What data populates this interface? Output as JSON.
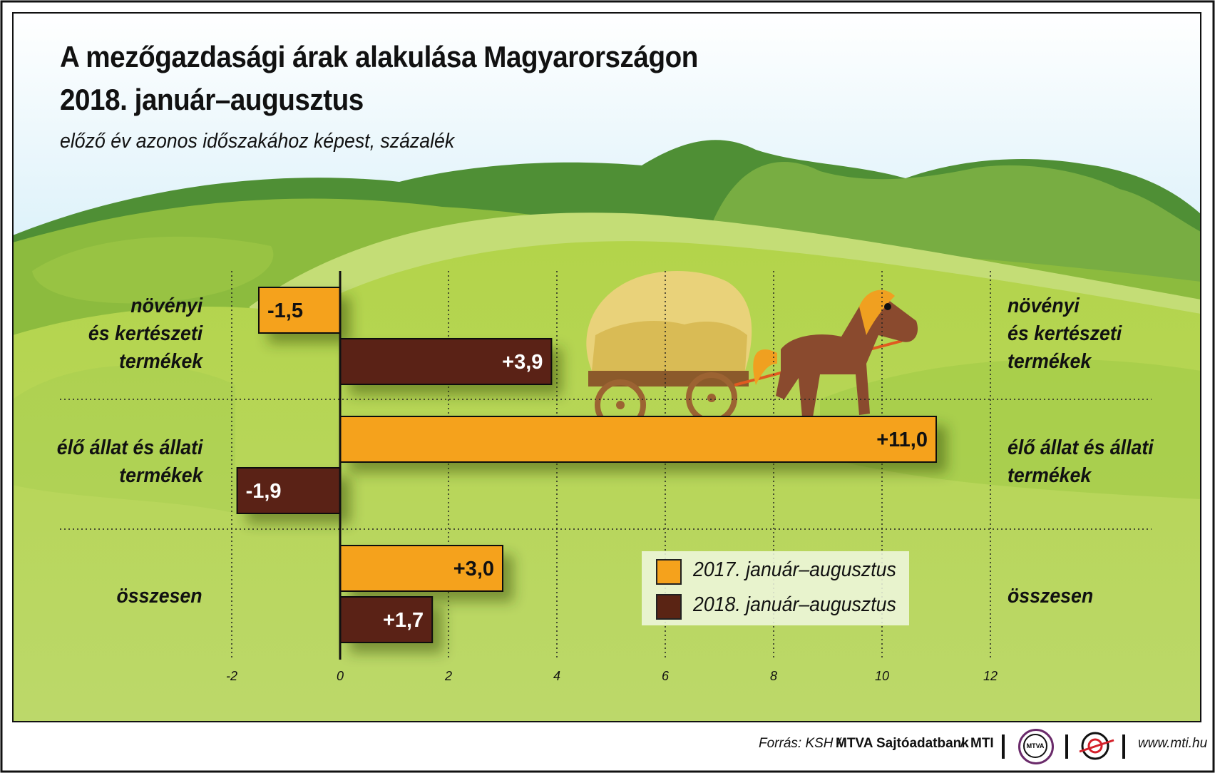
{
  "header": {
    "title_line1": "A mezőgazdasági árak alakulása Magyarországon",
    "title_line2": "2018. január–augusztus",
    "subtitle": "előző év azonos időszakához képest, százalék"
  },
  "chart_data": {
    "type": "bar",
    "orientation": "horizontal",
    "categories": [
      [
        "növényi",
        "és kertészeti",
        "termékek"
      ],
      [
        "élő állat és állati",
        "termékek"
      ],
      [
        "összesen"
      ]
    ],
    "series": [
      {
        "name": "2017. január–augusztus",
        "values": [
          -1.5,
          11.0,
          3.0
        ],
        "labels": [
          "-1,5",
          "+11,0",
          "+3,0"
        ],
        "color": "#f5a21c"
      },
      {
        "name": "2018. január–augusztus",
        "values": [
          3.9,
          -1.9,
          1.7
        ],
        "labels": [
          "+3,9",
          "-1,9",
          "+1,7"
        ],
        "color": "#5a2414"
      }
    ],
    "xlim": [
      -2,
      12
    ],
    "xticks": [
      -2,
      0,
      2,
      4,
      6,
      8,
      10,
      12
    ],
    "legend_position": "bottom-right",
    "grid": true
  },
  "footer": {
    "source_prefix": "Forrás: KSH /",
    "source_bold": "MTVA Sajtóadatbank",
    "source_sep": "/",
    "source_mti": "MTI",
    "logo_mtva": "MTVA",
    "url": "www.mti.hu"
  },
  "colors": {
    "sky": "#8fd0ee",
    "grass": "#b8d855",
    "hill": "#6aa23c",
    "border": "#111111"
  }
}
